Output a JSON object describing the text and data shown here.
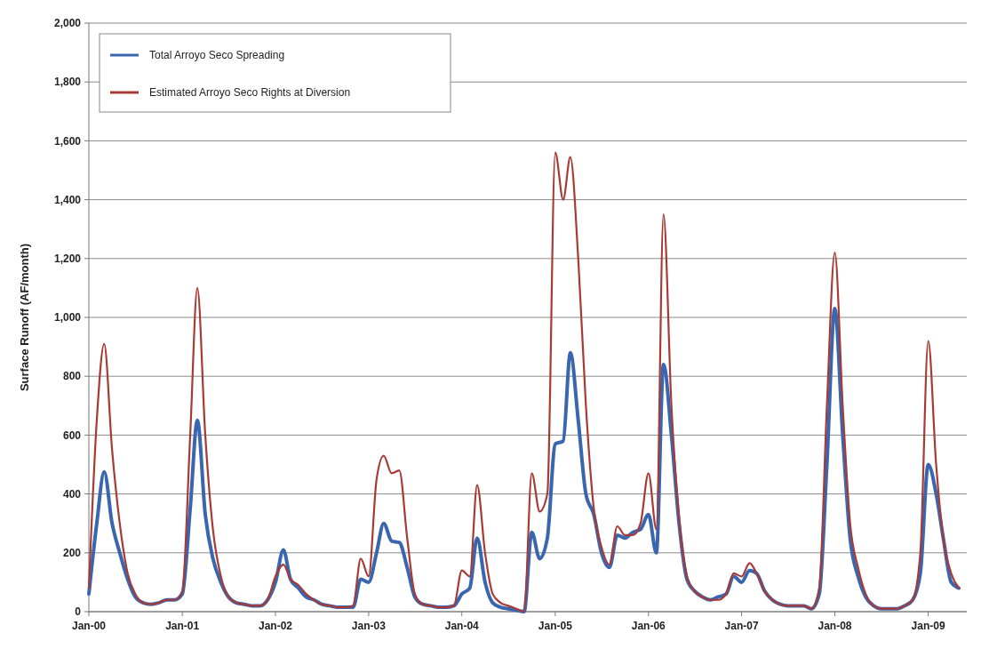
{
  "chart_data": {
    "type": "line",
    "ylabel": "Surface Runoff (AF/month)",
    "x": [
      "2000-01",
      "2000-02",
      "2000-03",
      "2000-04",
      "2000-05",
      "2000-06",
      "2000-07",
      "2000-08",
      "2000-09",
      "2000-10",
      "2000-11",
      "2000-12",
      "2001-01",
      "2001-02",
      "2001-03",
      "2001-04",
      "2001-05",
      "2001-06",
      "2001-07",
      "2001-08",
      "2001-09",
      "2001-10",
      "2001-11",
      "2001-12",
      "2002-01",
      "2002-02",
      "2002-03",
      "2002-04",
      "2002-05",
      "2002-06",
      "2002-07",
      "2002-08",
      "2002-09",
      "2002-10",
      "2002-11",
      "2002-12",
      "2003-01",
      "2003-02",
      "2003-03",
      "2003-04",
      "2003-05",
      "2003-06",
      "2003-07",
      "2003-08",
      "2003-09",
      "2003-10",
      "2003-11",
      "2003-12",
      "2004-01",
      "2004-02",
      "2004-03",
      "2004-04",
      "2004-05",
      "2004-06",
      "2004-07",
      "2004-08",
      "2004-09",
      "2004-10",
      "2004-11",
      "2004-12",
      "2005-01",
      "2005-02",
      "2005-03",
      "2005-04",
      "2005-05",
      "2005-06",
      "2005-07",
      "2005-08",
      "2005-09",
      "2005-10",
      "2005-11",
      "2005-12",
      "2006-01",
      "2006-02",
      "2006-03",
      "2006-04",
      "2006-05",
      "2006-06",
      "2006-07",
      "2006-08",
      "2006-09",
      "2006-10",
      "2006-11",
      "2006-12",
      "2007-01",
      "2007-02",
      "2007-03",
      "2007-04",
      "2007-05",
      "2007-06",
      "2007-07",
      "2007-08",
      "2007-09",
      "2007-10",
      "2007-11",
      "2007-12",
      "2008-01",
      "2008-02",
      "2008-03",
      "2008-04",
      "2008-05",
      "2008-06",
      "2008-07",
      "2008-08",
      "2008-09",
      "2008-10",
      "2008-11",
      "2008-12",
      "2009-01",
      "2009-02",
      "2009-03",
      "2009-04",
      "2009-05"
    ],
    "series": [
      {
        "name": "Total Arroyo Seco Spreading",
        "color": "#3a66b0",
        "values": [
          60,
          300,
          475,
          300,
          200,
          110,
          50,
          30,
          25,
          30,
          40,
          40,
          60,
          350,
          650,
          330,
          180,
          100,
          50,
          30,
          25,
          20,
          20,
          40,
          100,
          210,
          110,
          80,
          50,
          40,
          25,
          20,
          15,
          15,
          15,
          110,
          100,
          200,
          300,
          240,
          235,
          150,
          50,
          25,
          20,
          15,
          15,
          20,
          60,
          80,
          250,
          100,
          30,
          15,
          10,
          5,
          0,
          270,
          180,
          250,
          570,
          580,
          880,
          650,
          400,
          330,
          200,
          150,
          260,
          250,
          270,
          280,
          330,
          200,
          840,
          600,
          300,
          110,
          70,
          50,
          40,
          50,
          60,
          120,
          100,
          140,
          130,
          70,
          40,
          25,
          20,
          20,
          20,
          10,
          60,
          500,
          1030,
          600,
          250,
          120,
          50,
          20,
          10,
          10,
          10,
          20,
          40,
          130,
          500,
          400,
          250,
          100,
          80
        ]
      },
      {
        "name": "Estimated Arroyo Seco Rights at Diversion",
        "color": "#a83a35",
        "values": [
          80,
          650,
          910,
          550,
          300,
          130,
          60,
          30,
          25,
          30,
          40,
          40,
          70,
          600,
          1100,
          600,
          280,
          120,
          50,
          30,
          25,
          20,
          20,
          40,
          120,
          160,
          110,
          90,
          60,
          40,
          25,
          20,
          15,
          15,
          20,
          180,
          120,
          450,
          530,
          470,
          480,
          250,
          60,
          25,
          20,
          15,
          15,
          20,
          140,
          120,
          430,
          200,
          60,
          30,
          20,
          10,
          0,
          470,
          340,
          400,
          1560,
          1400,
          1545,
          1200,
          700,
          350,
          220,
          160,
          290,
          260,
          260,
          300,
          470,
          280,
          1350,
          700,
          320,
          120,
          70,
          50,
          40,
          40,
          60,
          130,
          120,
          165,
          130,
          70,
          40,
          25,
          20,
          20,
          20,
          10,
          80,
          700,
          1220,
          700,
          300,
          150,
          60,
          20,
          10,
          10,
          10,
          20,
          40,
          200,
          920,
          500,
          250,
          130,
          80
        ]
      }
    ],
    "xlim": [
      "2000-01",
      "2009-06"
    ],
    "xticks": [
      {
        "value": "2000-01",
        "label": "Jan-00"
      },
      {
        "value": "2001-01",
        "label": "Jan-01"
      },
      {
        "value": "2002-01",
        "label": "Jan-02"
      },
      {
        "value": "2003-01",
        "label": "Jan-03"
      },
      {
        "value": "2004-01",
        "label": "Jan-04"
      },
      {
        "value": "2005-01",
        "label": "Jan-05"
      },
      {
        "value": "2006-01",
        "label": "Jan-06"
      },
      {
        "value": "2007-01",
        "label": "Jan-07"
      },
      {
        "value": "2008-01",
        "label": "Jan-08"
      },
      {
        "value": "2009-01",
        "label": "Jan-09"
      }
    ],
    "ylim": [
      0,
      2000
    ],
    "yticks": [
      {
        "value": 0,
        "label": "0"
      },
      {
        "value": 200,
        "label": "200"
      },
      {
        "value": 400,
        "label": "400"
      },
      {
        "value": 600,
        "label": "600"
      },
      {
        "value": 800,
        "label": "800"
      },
      {
        "value": 1000,
        "label": "1,000"
      },
      {
        "value": 1200,
        "label": "1,200"
      },
      {
        "value": 1400,
        "label": "1,400"
      },
      {
        "value": 1600,
        "label": "1,600"
      },
      {
        "value": 1800,
        "label": "1,800"
      },
      {
        "value": 2000,
        "label": "2,000"
      }
    ],
    "grid": "y",
    "legend": "top left",
    "line_style": "solid"
  }
}
